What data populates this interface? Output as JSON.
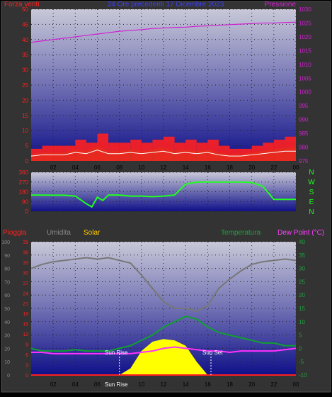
{
  "header": {
    "left_label": "Forza venti",
    "center_label": "24 Ore precedenti 17 Dicembre 2023",
    "right_label": "Pressione"
  },
  "colors": {
    "background": "#000000",
    "frame": "#3a3a3a",
    "wind": "#ff2020",
    "gust_area": "#0a7a1a",
    "avg_line": "#ffffff",
    "pressure": "#d020d0",
    "direction": "#20ff20",
    "rain": "#ff2020",
    "humidity": "#777777",
    "solar": "#ffff00",
    "temperature": "#10a030",
    "dewpoint": "#ff30ff",
    "label_wind": "#ff2020",
    "label_humidity": "#888888",
    "label_solar": "#ffcc00",
    "label_temp": "#20a040",
    "label_dew": "#ff40ff",
    "label_center": "#4040ff"
  },
  "time_labels": [
    "02",
    "04",
    "06",
    "08",
    "10",
    "12",
    "14",
    "16",
    "18",
    "20",
    "22",
    "00"
  ],
  "chart_data": [
    {
      "type": "line",
      "title": "24 Ore precedenti 17 Dicembre 2023",
      "x_hours": [
        0,
        1,
        2,
        3,
        4,
        5,
        6,
        7,
        8,
        9,
        10,
        11,
        12,
        13,
        14,
        15,
        16,
        17,
        18,
        19,
        20,
        21,
        22,
        23,
        24
      ],
      "series": [
        {
          "name": "Forza venti",
          "axis": "left",
          "values": [
            4,
            5,
            5,
            5,
            7,
            6,
            9,
            6,
            6,
            7,
            6,
            7,
            8,
            6,
            7,
            6,
            7,
            5,
            4,
            4,
            5,
            6,
            7,
            8,
            8
          ]
        },
        {
          "name": "Pressione",
          "axis": "right",
          "values": [
            1018,
            1018.5,
            1019,
            1019.5,
            1020,
            1020.5,
            1021,
            1021.5,
            1022,
            1022.3,
            1022.6,
            1023,
            1023.2,
            1023.4,
            1023.5,
            1023.8,
            1024,
            1024.2,
            1024.4,
            1024.6,
            1024.8,
            1025,
            1025,
            1025.2,
            1025.3
          ]
        }
      ],
      "ylim_left": [
        0,
        50
      ],
      "yticks_left": [
        0,
        5,
        10,
        15,
        20,
        25,
        30,
        35,
        40,
        45,
        50
      ],
      "ylim_right": [
        975,
        1030
      ],
      "yticks_right": [
        975,
        980,
        985,
        990,
        995,
        1000,
        1005,
        1010,
        1015,
        1020,
        1025,
        1030
      ],
      "grid": true
    },
    {
      "type": "line",
      "x_hours": [
        0,
        3,
        4,
        5,
        5.5,
        6,
        6.5,
        7,
        8,
        9,
        10,
        11,
        12,
        13,
        14,
        15,
        16,
        17,
        18,
        19,
        20,
        21,
        22,
        23,
        24
      ],
      "series": [
        {
          "name": "direction",
          "values": [
            150,
            148,
            140,
            70,
            40,
            130,
            100,
            150,
            150,
            140,
            140,
            135,
            140,
            150,
            250,
            270,
            270,
            270,
            270,
            270,
            265,
            230,
            110,
            110,
            110
          ]
        }
      ],
      "ylim": [
        0,
        360
      ],
      "yticks": [
        0,
        90,
        180,
        270,
        360
      ],
      "right_labels": [
        "N",
        "W",
        "S",
        "E",
        "N"
      ],
      "grid": true
    },
    {
      "type": "line",
      "x_hours": [
        0,
        1,
        2,
        3,
        4,
        5,
        6,
        7,
        8,
        9,
        10,
        11,
        12,
        13,
        14,
        15,
        16,
        17,
        18,
        19,
        20,
        21,
        22,
        23,
        24
      ],
      "series": [
        {
          "name": "Umidita",
          "axis": "left",
          "values": [
            80,
            83,
            85,
            86,
            87,
            88,
            87,
            88,
            86,
            84,
            75,
            65,
            55,
            50,
            50,
            48,
            52,
            65,
            72,
            78,
            83,
            85,
            86,
            87,
            86
          ]
        },
        {
          "name": "Temperatura",
          "axis": "right",
          "values": [
            0,
            -1,
            -1,
            -1,
            -0.5,
            -1,
            -1,
            -1,
            0,
            1,
            3,
            5,
            8,
            10,
            12,
            11,
            8,
            6,
            5,
            4,
            3,
            2,
            2,
            1,
            1
          ]
        },
        {
          "name": "Dew Point (°C)",
          "axis": "right",
          "values": [
            -1.5,
            -1.5,
            -2,
            -2,
            -2,
            -2,
            -2,
            -2,
            -2,
            -2,
            -1.5,
            -1,
            0,
            0.5,
            0,
            -0.5,
            -1,
            -1,
            -1.5,
            -1,
            -1,
            -1,
            -1,
            -0.5,
            0
          ]
        },
        {
          "name": "Solar",
          "axis": "left",
          "values": [
            0,
            0,
            0,
            0,
            0,
            0,
            0,
            0,
            0,
            5,
            18,
            25,
            27,
            26,
            22,
            10,
            0,
            0,
            0,
            0,
            0,
            0,
            0,
            0,
            0
          ]
        },
        {
          "name": "Pioggia",
          "axis": "left",
          "values": [
            0,
            0,
            0,
            0,
            0,
            0,
            0,
            0,
            0,
            0,
            0,
            0,
            0,
            0,
            0,
            0,
            0,
            0,
            0,
            0,
            0,
            0,
            0,
            0,
            0
          ]
        }
      ],
      "ylim_left": [
        0,
        100
      ],
      "yticks_left": [
        0,
        10,
        20,
        30,
        40,
        50,
        60,
        70,
        80,
        90,
        100
      ],
      "yticks_rain": [
        0,
        3,
        6,
        9,
        12,
        15,
        18,
        21,
        24,
        27,
        30,
        33,
        36,
        39
      ],
      "ylim_right": [
        -10,
        40
      ],
      "yticks_right": [
        -10,
        -5,
        0,
        5,
        10,
        15,
        20,
        25,
        30,
        35,
        40
      ],
      "annotations": [
        {
          "text": "Sun Rise",
          "x": 8.0
        },
        {
          "text": "Sun Set",
          "x": 16.3
        }
      ],
      "grid": true
    }
  ],
  "legend": {
    "rain": "Pioggia",
    "humidity": "Umidita",
    "solar": "Solar",
    "temperature": "Temperatura",
    "dewpoint": "Dew Point (°C)"
  },
  "sunrise_label": "Sun Rise",
  "sunset_label": "Sun Set",
  "sunrise_time": "Sun Rise",
  "compass": [
    "N",
    "W",
    "S",
    "E",
    "N"
  ]
}
